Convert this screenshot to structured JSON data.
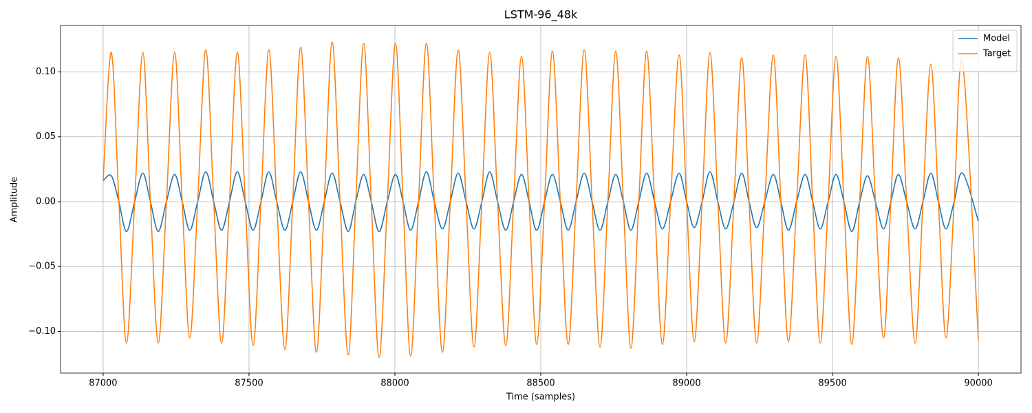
{
  "chart_data": {
    "type": "line",
    "title": "LSTM-96_48k",
    "x_label": "Time (samples)",
    "y_label": "Amplitude",
    "x": [
      87000,
      87028,
      87054,
      87080,
      87108,
      87136,
      87162,
      87189,
      87217,
      87245,
      87271,
      87297,
      87324,
      87352,
      87379,
      87406,
      87433,
      87460,
      87487,
      87514,
      87541,
      87568,
      87595,
      87623,
      87650,
      87677,
      87704,
      87731,
      87758,
      87785,
      87812,
      87840,
      87866,
      87893,
      87919,
      87946,
      87974,
      88002,
      88028,
      88054,
      88081,
      88108,
      88135,
      88163,
      88190,
      88217,
      88244,
      88271,
      88298,
      88325,
      88352,
      88380,
      88407,
      88434,
      88460,
      88486,
      88513,
      88540,
      88567,
      88594,
      88621,
      88649,
      88676,
      88703,
      88730,
      88757,
      88783,
      88809,
      88836,
      88863,
      88890,
      88917,
      88945,
      88974,
      89000,
      89026,
      89053,
      89080,
      89107,
      89134,
      89162,
      89189,
      89214,
      89240,
      89268,
      89297,
      89323,
      89349,
      89377,
      89406,
      89432,
      89458,
      89485,
      89512,
      89539,
      89566,
      89593,
      89620,
      89647,
      89675,
      89700,
      89726,
      89754,
      89783,
      89810,
      89837,
      89863,
      89889,
      89917,
      89946,
      90000
    ],
    "series": [
      {
        "name": "Model",
        "color": "#1f77b4",
        "values": [
          0.016,
          0.02,
          0,
          -0.023,
          0,
          0.022,
          0,
          -0.023,
          0,
          0.021,
          0,
          -0.022,
          0,
          0.023,
          0,
          -0.022,
          0,
          0.023,
          0,
          -0.022,
          0,
          0.023,
          0,
          -0.022,
          0,
          0.023,
          0,
          -0.022,
          0,
          0.022,
          0,
          -0.023,
          0,
          0.021,
          0,
          -0.023,
          0,
          0.021,
          0,
          -0.022,
          0,
          0.023,
          0,
          -0.021,
          0,
          0.022,
          0,
          -0.021,
          0,
          0.023,
          0,
          -0.022,
          0,
          0.021,
          0,
          -0.022,
          0,
          0.021,
          0,
          -0.022,
          0,
          0.022,
          0,
          -0.022,
          0,
          0.021,
          0,
          -0.022,
          0,
          0.022,
          0,
          -0.021,
          0,
          0.022,
          0,
          -0.02,
          0,
          0.023,
          0,
          -0.021,
          0,
          0.022,
          0,
          -0.02,
          0,
          0.021,
          0,
          -0.022,
          0,
          0.021,
          0,
          -0.021,
          0,
          0.021,
          0,
          -0.023,
          0,
          0.02,
          0,
          -0.021,
          0,
          0.021,
          0,
          -0.021,
          0,
          0.022,
          0,
          -0.021,
          0,
          0.022,
          -0.015
        ]
      },
      {
        "name": "Target",
        "color": "#ff7f0e",
        "values": [
          0.016,
          0.115,
          0,
          -0.109,
          0,
          0.115,
          0,
          -0.109,
          0,
          0.115,
          0,
          -0.105,
          0,
          0.117,
          0,
          -0.109,
          0,
          0.115,
          0,
          -0.111,
          0,
          0.117,
          0,
          -0.114,
          0,
          0.119,
          0,
          -0.116,
          0,
          0.123,
          0,
          -0.118,
          0,
          0.122,
          0,
          -0.12,
          0,
          0.122,
          0,
          -0.119,
          0,
          0.122,
          0,
          -0.116,
          0,
          0.117,
          0,
          -0.112,
          0,
          0.115,
          0,
          -0.111,
          0,
          0.112,
          0,
          -0.11,
          0,
          0.116,
          0,
          -0.11,
          0,
          0.117,
          0,
          -0.112,
          0,
          0.116,
          0,
          -0.113,
          0,
          0.116,
          0,
          -0.11,
          0,
          0.113,
          0,
          -0.108,
          0,
          0.115,
          0,
          -0.109,
          0,
          0.111,
          0,
          -0.109,
          0,
          0.113,
          0,
          -0.108,
          0,
          0.113,
          0,
          -0.109,
          0,
          0.112,
          0,
          -0.11,
          0,
          0.112,
          0,
          -0.105,
          0,
          0.111,
          0,
          -0.109,
          0,
          0.106,
          0,
          -0.105,
          0,
          0.107,
          -0.107
        ]
      }
    ],
    "xlim": [
      86854,
      90146
    ],
    "ylim": [
      -0.1321,
      0.1358
    ],
    "xticks": [
      87000,
      87500,
      88000,
      88500,
      89000,
      89500,
      90000
    ],
    "yticks": [
      {
        "value": -0.1,
        "label": "−0.10"
      },
      {
        "value": -0.05,
        "label": "−0.05"
      },
      {
        "value": 0,
        "label": "0.00"
      },
      0.05,
      {
        "value": 0.1,
        "label": "0.10"
      }
    ],
    "grid": true,
    "legend": "upper-right"
  }
}
